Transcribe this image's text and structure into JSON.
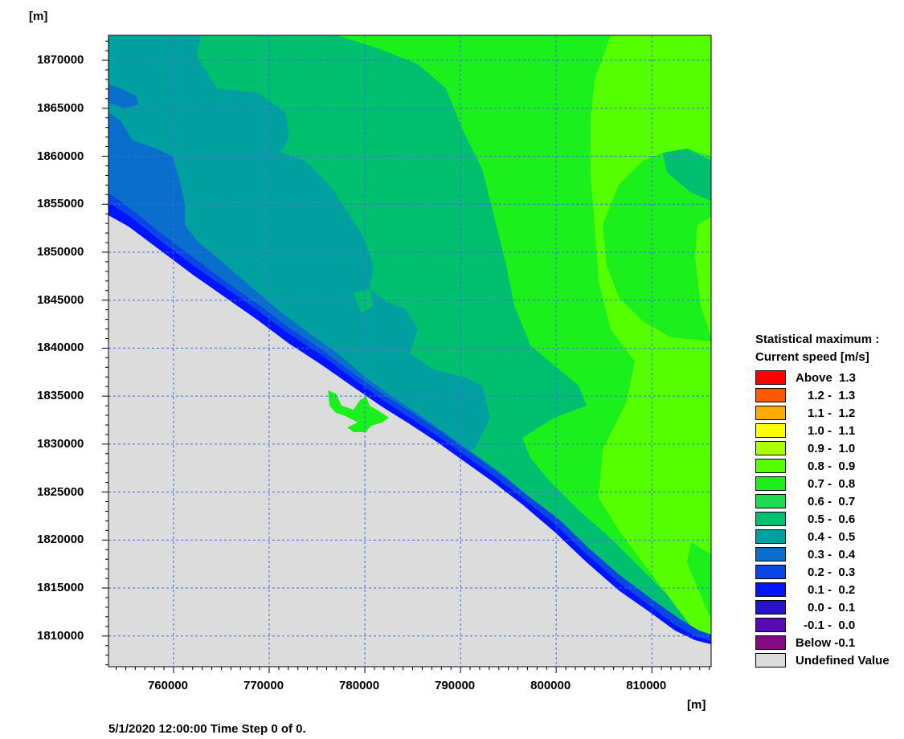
{
  "map": {
    "y_unit": "[m]",
    "x_unit": "[m]",
    "x_ticks": [
      "760000",
      "770000",
      "780000",
      "790000",
      "800000",
      "810000"
    ],
    "y_ticks": [
      "1870000",
      "1865000",
      "1860000",
      "1855000",
      "1850000",
      "1845000",
      "1840000",
      "1835000",
      "1830000",
      "1825000",
      "1820000",
      "1815000",
      "1810000"
    ],
    "x_tick_values": [
      760000,
      770000,
      780000,
      790000,
      800000,
      810000
    ],
    "y_tick_values": [
      1870000,
      1865000,
      1860000,
      1855000,
      1850000,
      1845000,
      1840000,
      1835000,
      1830000,
      1825000,
      1820000,
      1815000,
      1810000
    ],
    "x_range": [
      753200,
      816200
    ],
    "y_range": [
      1806800,
      1872600
    ],
    "grid": "dashed",
    "grid_color": "#3d6fd6",
    "undefined_color": "#dcdcdc"
  },
  "legend": {
    "title_line1": "Statistical maximum :",
    "title_line2": "Current speed [m/s]",
    "items": [
      {
        "label": "Above  1.3",
        "color": "#ff0000"
      },
      {
        "label": "1.2 -  1.3",
        "color": "#ff5a00"
      },
      {
        "label": "1.1 -  1.2",
        "color": "#ffaa00"
      },
      {
        "label": "1.0 -  1.1",
        "color": "#ffff00"
      },
      {
        "label": "0.9 -  1.0",
        "color": "#aaff00"
      },
      {
        "label": "0.8 -  0.9",
        "color": "#55ff00"
      },
      {
        "label": "0.7 -  0.8",
        "color": "#1cf01c"
      },
      {
        "label": "0.6 -  0.7",
        "color": "#1edc50"
      },
      {
        "label": "0.5 -  0.6",
        "color": "#00c070"
      },
      {
        "label": "0.4 -  0.5",
        "color": "#00a0a0"
      },
      {
        "label": "0.3 -  0.4",
        "color": "#0a6ecc"
      },
      {
        "label": "0.2 -  0.3",
        "color": "#0a46e6"
      },
      {
        "label": "0.1 -  0.2",
        "color": "#0014ff"
      },
      {
        "label": "0.0 -  0.1",
        "color": "#2814c8"
      },
      {
        "label": "-0.1 -  0.0",
        "color": "#5a0ab4"
      },
      {
        "label": "Below -0.1",
        "color": "#820a82"
      },
      {
        "label": "Undefined Value",
        "color": "#dcdcdc"
      }
    ]
  },
  "status": {
    "timestamp": "5/1/2020 12:00:00  Time Step 0 of 0."
  }
}
